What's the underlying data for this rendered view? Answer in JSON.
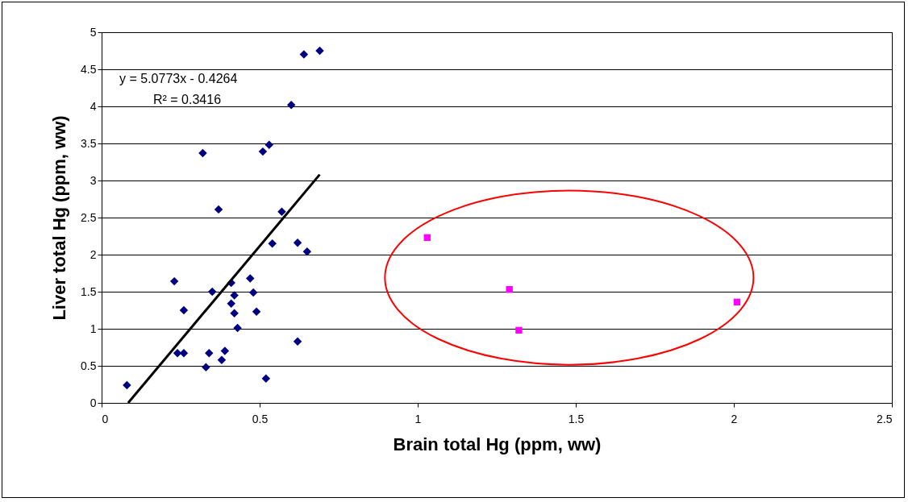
{
  "chart_data": {
    "type": "scatter",
    "xlabel": "Brain total Hg (ppm, ww)",
    "ylabel": "Liver total Hg (ppm, ww)",
    "xlim": [
      0,
      2.5
    ],
    "xticks": [
      0,
      0.5,
      1,
      1.5,
      2,
      2.5
    ],
    "ylim": [
      0,
      5
    ],
    "yticks": [
      0,
      0.5,
      1,
      1.5,
      2,
      2.5,
      3,
      3.5,
      4,
      4.5,
      5
    ],
    "grid": "y",
    "annotations": [
      "y = 5.0773x - 0.4264",
      "R² = 0.3416"
    ],
    "series": [
      {
        "color": "#000080",
        "marker": "diamond",
        "x": [
          0.08,
          0.23,
          0.26,
          0.24,
          0.26,
          0.32,
          0.35,
          0.37,
          0.34,
          0.33,
          0.38,
          0.39,
          0.41,
          0.41,
          0.42,
          0.42,
          0.43,
          0.47,
          0.48,
          0.49,
          0.51,
          0.53,
          0.52,
          0.54,
          0.57,
          0.6,
          0.62,
          0.62,
          0.65,
          0.64,
          0.69
        ],
        "values": [
          0.24,
          1.64,
          1.25,
          0.67,
          0.67,
          3.37,
          1.5,
          2.61,
          0.67,
          0.48,
          0.58,
          0.7,
          1.62,
          1.34,
          1.45,
          1.21,
          1.01,
          1.68,
          1.49,
          1.23,
          3.39,
          3.48,
          0.33,
          2.15,
          2.58,
          4.02,
          0.83,
          2.16,
          2.04,
          4.7,
          4.75
        ]
      },
      {
        "color": "#ff00ff",
        "marker": "square",
        "x": [
          1.03,
          1.29,
          1.32,
          2.01
        ],
        "values": [
          2.23,
          1.53,
          0.98,
          1.36
        ]
      },
      {
        "type": "line",
        "color": "#000000",
        "marker": "none",
        "x": [
          0.084,
          0.69
        ],
        "values": [
          0,
          3.08
        ]
      }
    ]
  }
}
